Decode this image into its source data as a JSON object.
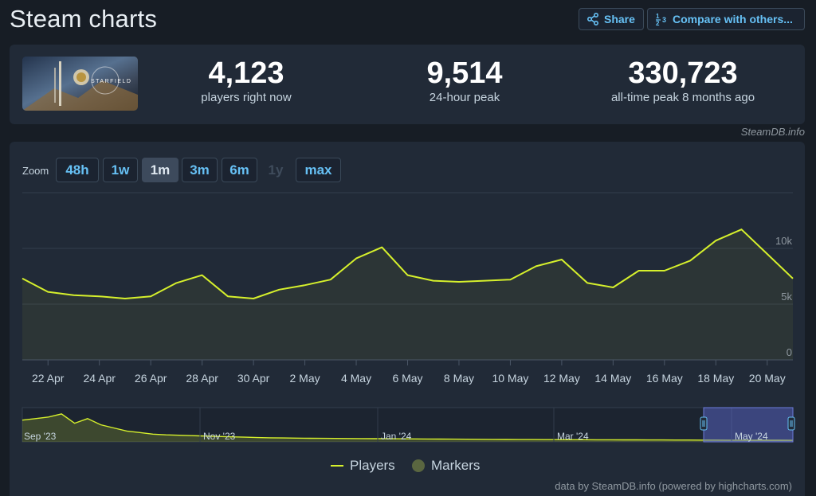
{
  "header": {
    "title": "Steam charts",
    "share_label": "Share",
    "compare_label": "Compare with others..."
  },
  "stats": {
    "game_logo_text": "STARFIELD",
    "current": {
      "value": "4,123",
      "label": "players right now"
    },
    "peak24": {
      "value": "9,514",
      "label": "24-hour peak"
    },
    "alltime": {
      "value": "330,723",
      "label": "all-time peak 8 months ago"
    },
    "credit": "SteamDB.info"
  },
  "zoom": {
    "label": "Zoom",
    "options": [
      "48h",
      "1w",
      "1m",
      "3m",
      "6m",
      "1y",
      "max"
    ],
    "active": "1m",
    "disabled": "1y"
  },
  "chart_data": {
    "type": "line",
    "x": [
      "21 Apr",
      "22 Apr",
      "23 Apr",
      "24 Apr",
      "25 Apr",
      "26 Apr",
      "27 Apr",
      "28 Apr",
      "29 Apr",
      "30 Apr",
      "1 May",
      "2 May",
      "3 May",
      "4 May",
      "5 May",
      "6 May",
      "7 May",
      "8 May",
      "9 May",
      "10 May",
      "11 May",
      "12 May",
      "13 May",
      "14 May",
      "15 May",
      "16 May",
      "17 May",
      "18 May",
      "19 May",
      "20 May",
      "21 May"
    ],
    "series": [
      {
        "name": "Players",
        "color": "#d6f02c",
        "values": [
          7300,
          6100,
          5800,
          5700,
          5500,
          5700,
          6900,
          7600,
          5700,
          5500,
          6300,
          6700,
          7200,
          9100,
          10100,
          7600,
          7100,
          7000,
          7100,
          7200,
          8400,
          9000,
          6900,
          6500,
          8000,
          8000,
          8900,
          10700,
          11700,
          9500,
          7300
        ]
      }
    ],
    "x_tick_labels": [
      "22 Apr",
      "24 Apr",
      "26 Apr",
      "28 Apr",
      "30 Apr",
      "2 May",
      "4 May",
      "6 May",
      "8 May",
      "10 May",
      "12 May",
      "14 May",
      "16 May",
      "18 May",
      "20 May"
    ],
    "y_tick_labels": [
      "0",
      "5k",
      "10k"
    ],
    "ylim": [
      0,
      15000
    ],
    "grid": true,
    "navigator": {
      "labels": [
        "Sep '23",
        "Nov '23",
        "Jan '24",
        "Mar '24",
        "May '24"
      ],
      "values": [
        28000,
        30000,
        32000,
        36000,
        24000,
        30000,
        22000,
        18000,
        14000,
        12000,
        10000,
        9000,
        8500,
        8000,
        7500,
        7000,
        6500,
        6000,
        5500,
        5200,
        5000,
        4800,
        4600,
        4500,
        4400,
        4300,
        4200,
        4100,
        4000,
        3900,
        3800,
        3700,
        3600,
        3500,
        3400,
        3300,
        3200,
        3100,
        3000,
        2950,
        2900,
        2850,
        2800,
        2750,
        2700,
        2650,
        2600,
        2550,
        2500,
        2450,
        2400,
        2350,
        2300,
        2250,
        2200,
        2150,
        2100,
        2050,
        2000,
        1950
      ]
    }
  },
  "legend": {
    "players_label": "Players",
    "markers_label": "Markers"
  },
  "footer": "data by SteamDB.info (powered by highcharts.com)"
}
